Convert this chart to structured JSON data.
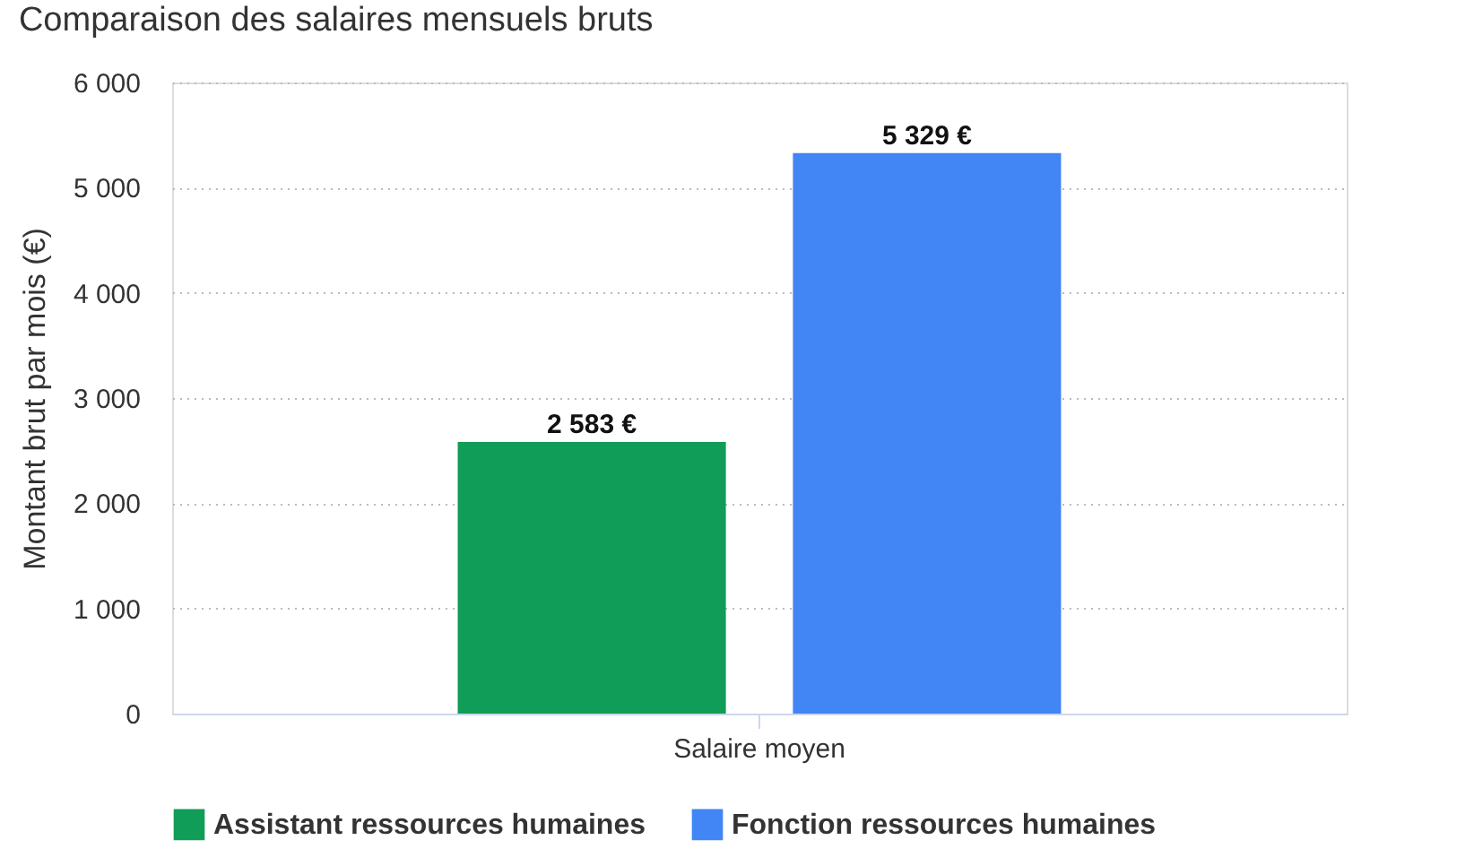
{
  "chart_data": {
    "type": "bar",
    "title": "Comparaison des salaires mensuels bruts",
    "ylabel": "Montant brut par mois (€)",
    "categories": [
      "Salaire moyen"
    ],
    "series": [
      {
        "name": "Assistant ressources humaines",
        "color": "#109d58",
        "values": [
          2583
        ],
        "value_labels": [
          "2 583 €"
        ]
      },
      {
        "name": "Fonction ressources humaines",
        "color": "#4285f4",
        "values": [
          5329
        ],
        "value_labels": [
          "5 329 €"
        ]
      }
    ],
    "ylim": [
      0,
      6000
    ],
    "yticks": [
      0,
      {
        "value": 1000,
        "label": "1 000"
      },
      {
        "value": 2000,
        "label": "2 000"
      },
      {
        "value": 3000,
        "label": "3 000"
      },
      {
        "value": 4000,
        "label": "4 000"
      },
      {
        "value": 5000,
        "label": "5 000"
      },
      {
        "value": 6000,
        "label": "6 000"
      }
    ],
    "grid": "y",
    "legend": "bottom"
  }
}
